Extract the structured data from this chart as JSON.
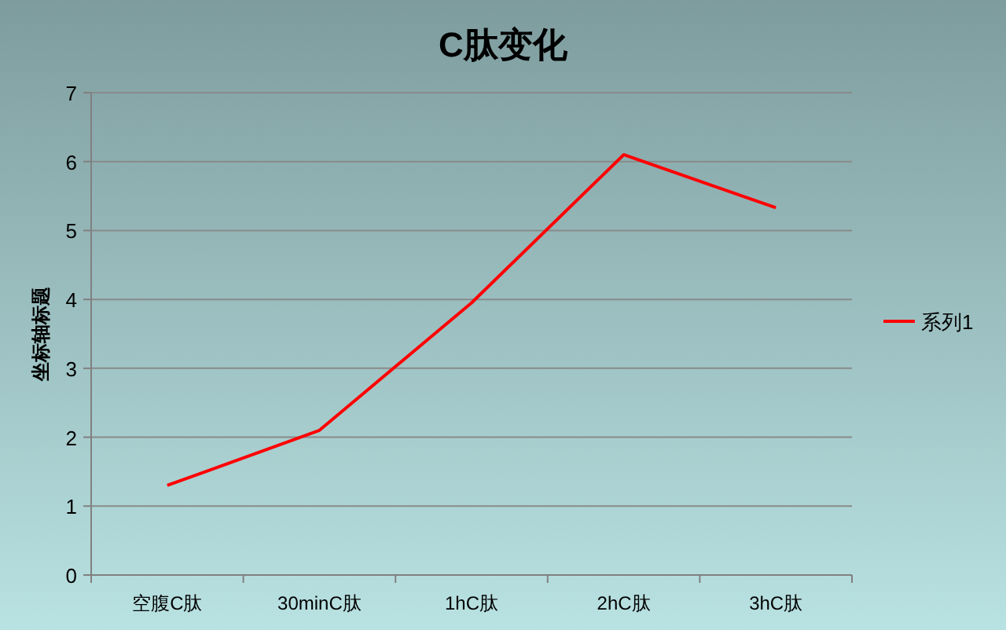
{
  "chart_data": {
    "type": "line",
    "title": "C肽变化",
    "ylabel": "坐标轴标题",
    "categories": [
      "空腹C肽",
      "30minC肽",
      "1hC肽",
      "2hC肽",
      "3hC肽"
    ],
    "series": [
      {
        "name": "系列1",
        "color": "#ff0000",
        "values": [
          1.3,
          2.1,
          3.95,
          6.1,
          5.33
        ]
      }
    ],
    "ylim": [
      0,
      7
    ],
    "yticks": [
      0,
      1,
      2,
      3,
      4,
      5,
      6,
      7
    ],
    "grid": "y",
    "legend": "right"
  }
}
